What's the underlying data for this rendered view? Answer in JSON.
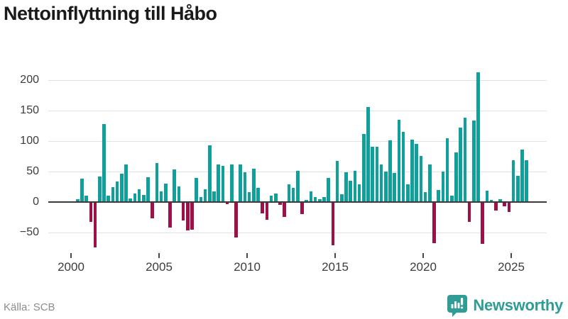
{
  "title": "Nettoinflyttning till Håbo",
  "source": "Källa: SCB",
  "logo": {
    "text": "Newsworthy"
  },
  "colors": {
    "positive": "#0fa09c",
    "negative": "#9e1048",
    "grid": "#e2e2e2",
    "zero_line": "#3a3a3a",
    "axis_text": "#3c3c3c",
    "title_text": "#1a1a1a",
    "source_text": "#8c8c8c",
    "logo_teal": "#2f9c95"
  },
  "chart_data": {
    "type": "bar",
    "title": "Nettoinflyttning till Håbo",
    "xlabel": "",
    "ylabel": "",
    "grid": true,
    "legend": "none",
    "x_unit": "quarter",
    "ylim": [
      -88,
      244
    ],
    "y_ticks": [
      -50,
      0,
      50,
      100,
      150,
      200
    ],
    "y_tick_labels": [
      "−50",
      "0",
      "50",
      "100",
      "150",
      "200"
    ],
    "x_ticks": [
      2000,
      2005,
      2010,
      2015,
      2020,
      2025
    ],
    "x_tick_labels": [
      "2000",
      "2005",
      "2010",
      "2015",
      "2020",
      "2025"
    ],
    "quarters": [
      "2000Q2",
      "2000Q3",
      "2000Q4",
      "2001Q1",
      "2001Q2",
      "2001Q3",
      "2001Q4",
      "2002Q1",
      "2002Q2",
      "2002Q3",
      "2002Q4",
      "2003Q1",
      "2003Q2",
      "2003Q3",
      "2003Q4",
      "2004Q1",
      "2004Q2",
      "2004Q3",
      "2004Q4",
      "2005Q1",
      "2005Q2",
      "2005Q3",
      "2005Q4",
      "2006Q1",
      "2006Q2",
      "2006Q3",
      "2006Q4",
      "2007Q1",
      "2007Q2",
      "2007Q3",
      "2007Q4",
      "2008Q1",
      "2008Q2",
      "2008Q3",
      "2008Q4",
      "2009Q1",
      "2009Q2",
      "2009Q3",
      "2009Q4",
      "2010Q1",
      "2010Q2",
      "2010Q3",
      "2010Q4",
      "2011Q1",
      "2011Q2",
      "2011Q3",
      "2011Q4",
      "2012Q1",
      "2012Q2",
      "2012Q3",
      "2012Q4",
      "2013Q1",
      "2013Q2",
      "2013Q3",
      "2013Q4",
      "2014Q1",
      "2014Q2",
      "2014Q3",
      "2014Q4",
      "2015Q1",
      "2015Q2",
      "2015Q3",
      "2015Q4",
      "2016Q1",
      "2016Q2",
      "2016Q3",
      "2016Q4",
      "2017Q1",
      "2017Q2",
      "2017Q3",
      "2017Q4",
      "2018Q1",
      "2018Q2",
      "2018Q3",
      "2018Q4",
      "2019Q1",
      "2019Q2",
      "2019Q3",
      "2019Q4",
      "2020Q1",
      "2020Q2",
      "2020Q3",
      "2020Q4",
      "2021Q1",
      "2021Q2",
      "2021Q3",
      "2021Q4",
      "2022Q1",
      "2022Q2",
      "2022Q3",
      "2022Q4",
      "2023Q1",
      "2023Q2",
      "2023Q3",
      "2023Q4",
      "2024Q1",
      "2024Q2",
      "2024Q3",
      "2024Q4",
      "2025Q1",
      "2025Q2",
      "2025Q3",
      "2025Q4"
    ],
    "values": [
      4,
      37,
      9,
      -33,
      -74,
      41,
      127,
      9,
      23,
      32,
      45,
      60,
      5,
      13,
      20,
      11,
      40,
      -27,
      63,
      16,
      29,
      -42,
      52,
      24,
      -30,
      -47,
      -45,
      38,
      7,
      20,
      92,
      16,
      61,
      58,
      -3,
      61,
      -58,
      61,
      48,
      15,
      54,
      22,
      -19,
      -29,
      9,
      13,
      -5,
      -24,
      28,
      22,
      50,
      -20,
      2,
      16,
      7,
      4,
      7,
      38,
      -71,
      66,
      12,
      48,
      34,
      50,
      28,
      111,
      155,
      89,
      89,
      60,
      49,
      100,
      46,
      134,
      114,
      28,
      101,
      94,
      74,
      15,
      61,
      -67,
      19,
      49,
      104,
      9,
      80,
      121,
      137,
      -32,
      133,
      212,
      -69,
      17,
      2,
      -14,
      4,
      -7,
      -16,
      68,
      42,
      85,
      68
    ]
  }
}
